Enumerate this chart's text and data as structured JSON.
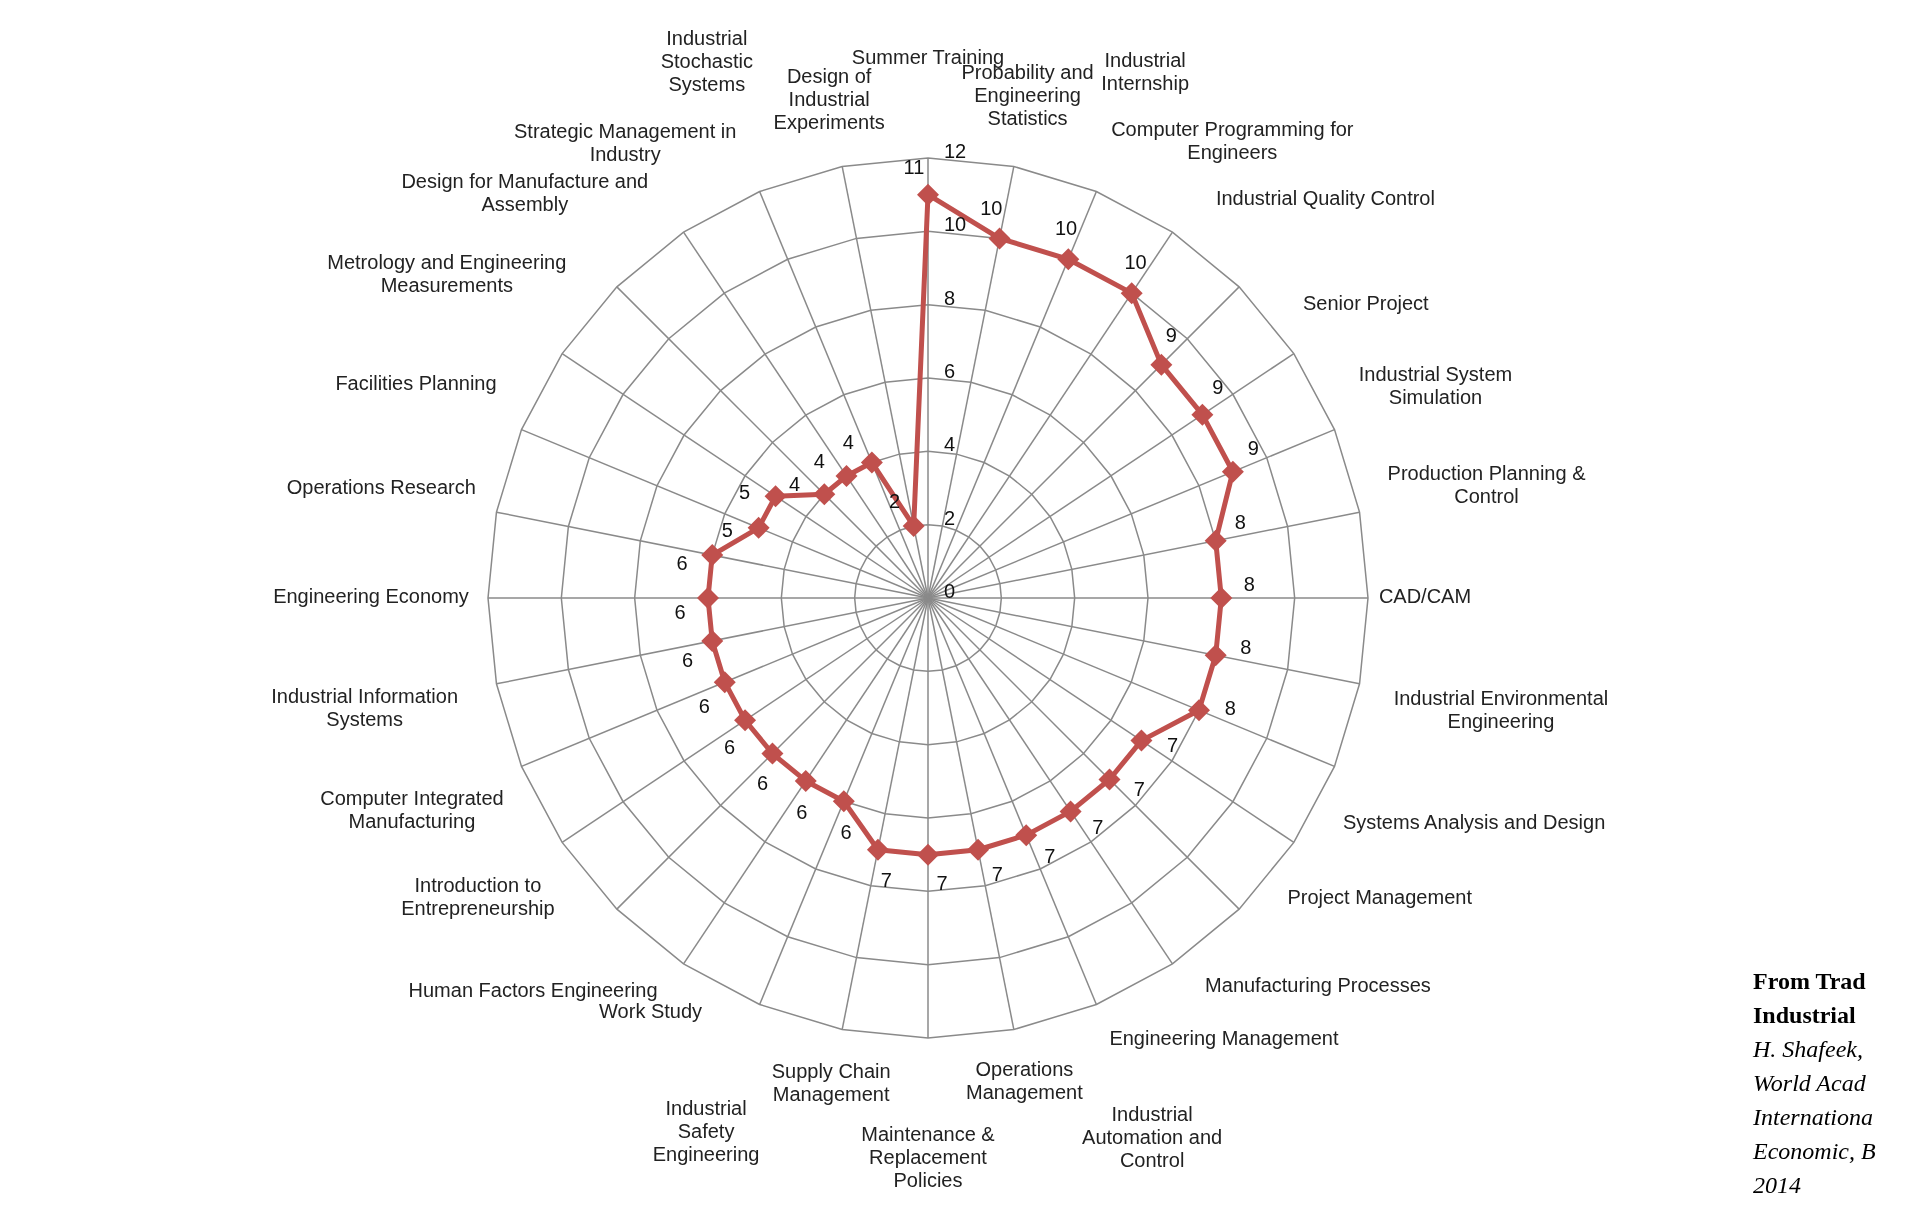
{
  "chart_data": {
    "type": "radar",
    "categories": [
      "Summer Training",
      "Probability and Engineering Statistics",
      "Industrial Internship",
      "Computer Programming for Engineers",
      "Industrial Quality Control",
      "Senior Project",
      "Industrial System Simulation",
      "Production Planning & Control",
      "CAD/CAM",
      "Industrial Environmental Engineering",
      "Systems Analysis and Design",
      "Project Management",
      "Manufacturing Processes",
      "Engineering Management",
      "Industrial Automation and Control",
      "Operations Management",
      "Maintenance & Replacement Policies",
      "Supply Chain Management",
      "Industrial Safety Engineering",
      "Work Study",
      "Human Factors Engineering",
      "Introduction to Entrepreneurship",
      "Computer Integrated Manufacturing",
      "Industrial Information Systems",
      "Engineering Economy",
      "Operations Research",
      "Facilities Planning",
      "Metrology and Engineering Measurements",
      "Design for Manufacture and Assembly",
      "Strategic Management in Industry",
      "Industrial Stochastic Systems",
      "Design of Industrial Experiments"
    ],
    "series": [
      {
        "color": "#c0504d",
        "values": [
          11,
          10,
          10,
          10,
          9,
          9,
          9,
          8,
          8,
          8,
          8,
          7,
          7,
          7,
          7,
          7,
          7,
          7,
          6,
          6,
          6,
          6,
          6,
          6,
          6,
          6,
          5,
          5,
          4,
          4,
          4,
          2
        ]
      }
    ],
    "ylim": [
      0,
      12
    ],
    "yticks": [
      0,
      2,
      4,
      6,
      8,
      10,
      12
    ],
    "grid": true,
    "marker": "diamond",
    "data_labels": true,
    "legend": false,
    "annotations": [
      "From Trad",
      "Industrial",
      "H. Shafeek,",
      "World Acad",
      "Internationa",
      "Economic, B",
      "2014"
    ]
  }
}
